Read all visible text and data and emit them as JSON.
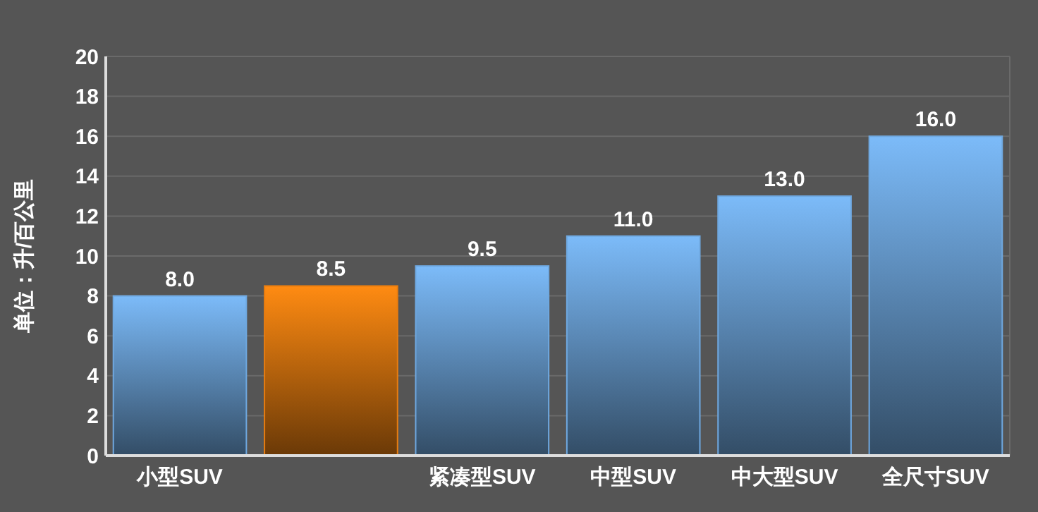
{
  "chart_data": {
    "type": "bar",
    "ylabel": "单位：升/百公里",
    "categories": [
      "小型SUV",
      null,
      "紧凑型SUV",
      "中型SUV",
      "中大型SUV",
      "全尺寸SUV"
    ],
    "values": [
      8.0,
      8.5,
      9.5,
      11.0,
      13.0,
      16.0
    ],
    "colors": [
      "#6fa8e0",
      "#e87d10",
      "#6fa8e0",
      "#6fa8e0",
      "#6fa8e0",
      "#6fa8e0"
    ],
    "value_labels": [
      "8.0",
      "8.5",
      "9.5",
      "11.0",
      "13.0",
      "16.0"
    ],
    "ylim": [
      0,
      20
    ],
    "yticks": [
      0,
      2,
      4,
      6,
      8,
      10,
      12,
      14,
      16,
      18,
      20
    ],
    "grid": "y"
  }
}
